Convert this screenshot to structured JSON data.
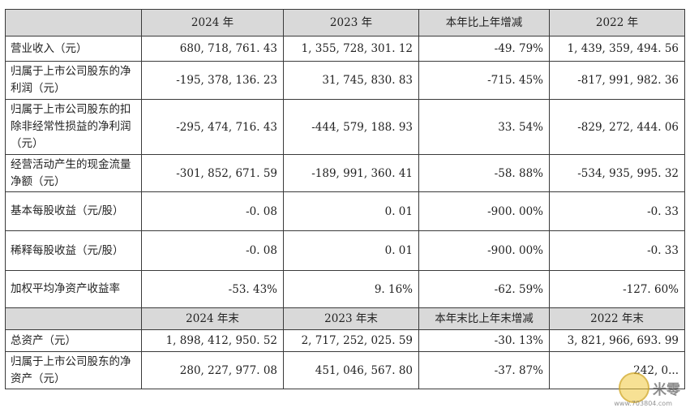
{
  "header1": [
    "",
    "2024 年",
    "2023 年",
    "本年比上年增减",
    "2022 年"
  ],
  "rows1": [
    {
      "label": "营业收入（元）",
      "v2024": "680, 718, 761. 43",
      "v2023": "1, 355, 728, 301. 12",
      "chg": "-49. 79%",
      "v2022": "1, 439, 359, 494. 56"
    },
    {
      "label": "归属于上市公司股东的净利润（元）",
      "v2024": "-195, 378, 136. 23",
      "v2023": "31, 745, 830. 83",
      "chg": "-715. 45%",
      "v2022": "-817, 991, 982. 36"
    },
    {
      "label": "归属于上市公司股东的扣除非经常性损益的净利润（元）",
      "v2024": "-295, 474, 716. 43",
      "v2023": "-444, 579, 188. 93",
      "chg": "33. 54%",
      "v2022": "-829, 272, 444. 06"
    },
    {
      "label": "经营活动产生的现金流量净额（元）",
      "v2024": "-301, 852, 671. 59",
      "v2023": "-189, 991, 360. 41",
      "chg": "-58. 88%",
      "v2022": "-534, 935, 995. 32"
    },
    {
      "label": "基本每股收益（元/股）",
      "v2024": "-0. 08",
      "v2023": "0. 01",
      "chg": "-900. 00%",
      "v2022": "-0. 33"
    },
    {
      "label": "稀释每股收益（元/股）",
      "v2024": "-0. 08",
      "v2023": "0. 01",
      "chg": "-900. 00%",
      "v2022": "-0. 33"
    },
    {
      "label": "加权平均净资产收益率",
      "v2024": "-53. 43%",
      "v2023": "9. 16%",
      "chg": "-62. 59%",
      "v2022": "-127. 60%"
    }
  ],
  "header2": [
    "",
    "2024 年末",
    "2023 年末",
    "本年末比上年末增减",
    "2022 年末"
  ],
  "rows2": [
    {
      "label": "总资产（元）",
      "v2024": "1, 898, 412, 950. 52",
      "v2023": "2, 717, 252, 025. 59",
      "chg": "-30. 13%",
      "v2022": "3, 821, 966, 693. 99"
    },
    {
      "label": "归属于上市公司股东的净资产（元）",
      "v2024": "280, 227, 977. 08",
      "v2023": "451, 046, 567. 80",
      "chg": "-37. 87%",
      "v2022": "242, 0..."
    }
  ],
  "watermark": {
    "text": "米零",
    "url": "www.703804.com",
    "logo_icon": "watermark-logo-icon"
  }
}
